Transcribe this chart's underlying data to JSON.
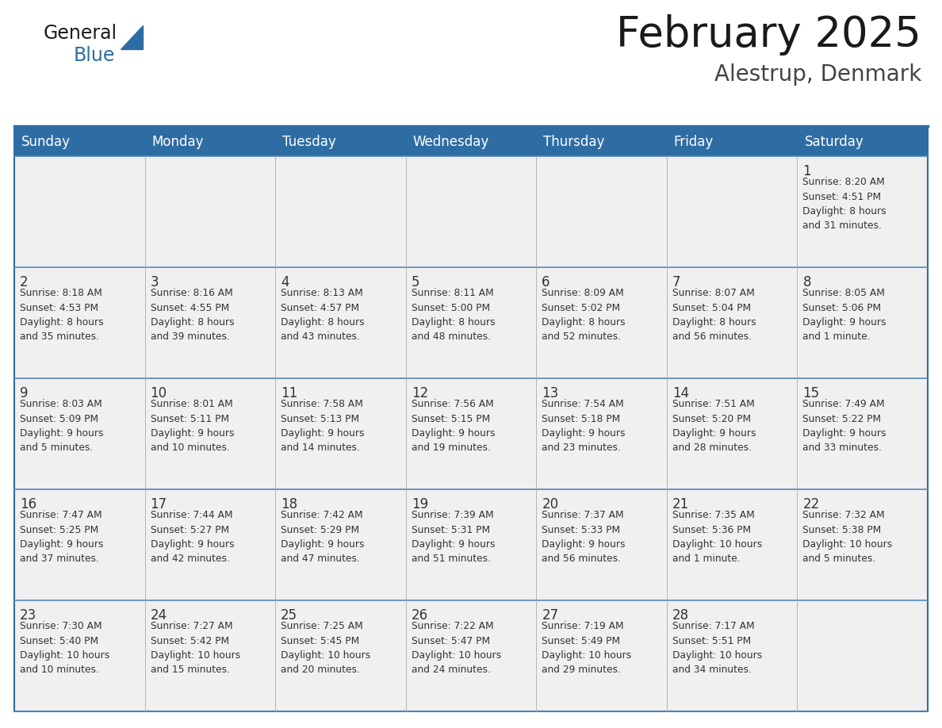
{
  "title": "February 2025",
  "subtitle": "Alestrup, Denmark",
  "days_of_week": [
    "Sunday",
    "Monday",
    "Tuesday",
    "Wednesday",
    "Thursday",
    "Friday",
    "Saturday"
  ],
  "header_bg": "#2E6DA4",
  "header_text": "#FFFFFF",
  "cell_bg": "#F0F0F0",
  "border_color": "#2E6DA4",
  "cell_border_color": "#5588BB",
  "day_num_color": "#333333",
  "info_color": "#333333",
  "title_color": "#1a1a1a",
  "subtitle_color": "#444444",
  "logo_general_color": "#1a1a1a",
  "logo_blue_color": "#2E6DA4",
  "logo_triangle_color": "#2E6DA4",
  "weeks": [
    [
      {
        "day": null,
        "info": null
      },
      {
        "day": null,
        "info": null
      },
      {
        "day": null,
        "info": null
      },
      {
        "day": null,
        "info": null
      },
      {
        "day": null,
        "info": null
      },
      {
        "day": null,
        "info": null
      },
      {
        "day": 1,
        "info": "Sunrise: 8:20 AM\nSunset: 4:51 PM\nDaylight: 8 hours\nand 31 minutes."
      }
    ],
    [
      {
        "day": 2,
        "info": "Sunrise: 8:18 AM\nSunset: 4:53 PM\nDaylight: 8 hours\nand 35 minutes."
      },
      {
        "day": 3,
        "info": "Sunrise: 8:16 AM\nSunset: 4:55 PM\nDaylight: 8 hours\nand 39 minutes."
      },
      {
        "day": 4,
        "info": "Sunrise: 8:13 AM\nSunset: 4:57 PM\nDaylight: 8 hours\nand 43 minutes."
      },
      {
        "day": 5,
        "info": "Sunrise: 8:11 AM\nSunset: 5:00 PM\nDaylight: 8 hours\nand 48 minutes."
      },
      {
        "day": 6,
        "info": "Sunrise: 8:09 AM\nSunset: 5:02 PM\nDaylight: 8 hours\nand 52 minutes."
      },
      {
        "day": 7,
        "info": "Sunrise: 8:07 AM\nSunset: 5:04 PM\nDaylight: 8 hours\nand 56 minutes."
      },
      {
        "day": 8,
        "info": "Sunrise: 8:05 AM\nSunset: 5:06 PM\nDaylight: 9 hours\nand 1 minute."
      }
    ],
    [
      {
        "day": 9,
        "info": "Sunrise: 8:03 AM\nSunset: 5:09 PM\nDaylight: 9 hours\nand 5 minutes."
      },
      {
        "day": 10,
        "info": "Sunrise: 8:01 AM\nSunset: 5:11 PM\nDaylight: 9 hours\nand 10 minutes."
      },
      {
        "day": 11,
        "info": "Sunrise: 7:58 AM\nSunset: 5:13 PM\nDaylight: 9 hours\nand 14 minutes."
      },
      {
        "day": 12,
        "info": "Sunrise: 7:56 AM\nSunset: 5:15 PM\nDaylight: 9 hours\nand 19 minutes."
      },
      {
        "day": 13,
        "info": "Sunrise: 7:54 AM\nSunset: 5:18 PM\nDaylight: 9 hours\nand 23 minutes."
      },
      {
        "day": 14,
        "info": "Sunrise: 7:51 AM\nSunset: 5:20 PM\nDaylight: 9 hours\nand 28 minutes."
      },
      {
        "day": 15,
        "info": "Sunrise: 7:49 AM\nSunset: 5:22 PM\nDaylight: 9 hours\nand 33 minutes."
      }
    ],
    [
      {
        "day": 16,
        "info": "Sunrise: 7:47 AM\nSunset: 5:25 PM\nDaylight: 9 hours\nand 37 minutes."
      },
      {
        "day": 17,
        "info": "Sunrise: 7:44 AM\nSunset: 5:27 PM\nDaylight: 9 hours\nand 42 minutes."
      },
      {
        "day": 18,
        "info": "Sunrise: 7:42 AM\nSunset: 5:29 PM\nDaylight: 9 hours\nand 47 minutes."
      },
      {
        "day": 19,
        "info": "Sunrise: 7:39 AM\nSunset: 5:31 PM\nDaylight: 9 hours\nand 51 minutes."
      },
      {
        "day": 20,
        "info": "Sunrise: 7:37 AM\nSunset: 5:33 PM\nDaylight: 9 hours\nand 56 minutes."
      },
      {
        "day": 21,
        "info": "Sunrise: 7:35 AM\nSunset: 5:36 PM\nDaylight: 10 hours\nand 1 minute."
      },
      {
        "day": 22,
        "info": "Sunrise: 7:32 AM\nSunset: 5:38 PM\nDaylight: 10 hours\nand 5 minutes."
      }
    ],
    [
      {
        "day": 23,
        "info": "Sunrise: 7:30 AM\nSunset: 5:40 PM\nDaylight: 10 hours\nand 10 minutes."
      },
      {
        "day": 24,
        "info": "Sunrise: 7:27 AM\nSunset: 5:42 PM\nDaylight: 10 hours\nand 15 minutes."
      },
      {
        "day": 25,
        "info": "Sunrise: 7:25 AM\nSunset: 5:45 PM\nDaylight: 10 hours\nand 20 minutes."
      },
      {
        "day": 26,
        "info": "Sunrise: 7:22 AM\nSunset: 5:47 PM\nDaylight: 10 hours\nand 24 minutes."
      },
      {
        "day": 27,
        "info": "Sunrise: 7:19 AM\nSunset: 5:49 PM\nDaylight: 10 hours\nand 29 minutes."
      },
      {
        "day": 28,
        "info": "Sunrise: 7:17 AM\nSunset: 5:51 PM\nDaylight: 10 hours\nand 34 minutes."
      },
      {
        "day": null,
        "info": null
      }
    ]
  ]
}
